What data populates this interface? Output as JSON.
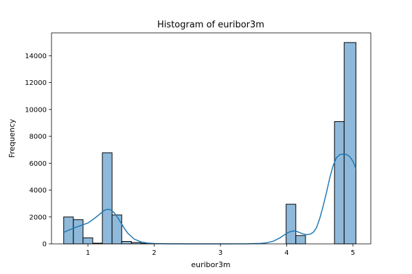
{
  "chart_data": {
    "type": "bar",
    "title": "Histogram of euribor3m",
    "xlabel": "euribor3m",
    "ylabel": "Frequency",
    "xlim": [
      0.45,
      5.27
    ],
    "ylim": [
      0,
      15700
    ],
    "x_ticks": [
      1,
      2,
      3,
      4,
      5
    ],
    "y_ticks": [
      0,
      2000,
      4000,
      6000,
      8000,
      10000,
      12000,
      14000
    ],
    "bin_width": 0.146,
    "bins": [
      {
        "x0": 0.634,
        "x1": 0.78,
        "count": 2000
      },
      {
        "x0": 0.78,
        "x1": 0.926,
        "count": 1800
      },
      {
        "x0": 0.926,
        "x1": 1.072,
        "count": 450
      },
      {
        "x0": 1.072,
        "x1": 1.218,
        "count": 50
      },
      {
        "x0": 1.218,
        "x1": 1.364,
        "count": 6780
      },
      {
        "x0": 1.364,
        "x1": 1.51,
        "count": 2150
      },
      {
        "x0": 1.51,
        "x1": 1.656,
        "count": 180
      },
      {
        "x0": 1.656,
        "x1": 1.802,
        "count": 100
      },
      {
        "x0": 1.802,
        "x1": 1.948,
        "count": 40
      },
      {
        "x0": 1.948,
        "x1": 2.094,
        "count": 10
      },
      {
        "x0": 3.992,
        "x1": 4.138,
        "count": 2950
      },
      {
        "x0": 4.138,
        "x1": 4.284,
        "count": 620
      },
      {
        "x0": 4.722,
        "x1": 4.868,
        "count": 9100
      },
      {
        "x0": 4.868,
        "x1": 5.045,
        "count": 14980
      }
    ],
    "kde": {
      "x": [
        0.634,
        0.7,
        0.8,
        0.9,
        1.0,
        1.1,
        1.2,
        1.25,
        1.3,
        1.35,
        1.4,
        1.45,
        1.5,
        1.55,
        1.6,
        1.7,
        1.8,
        1.9,
        2.0,
        2.2,
        2.5,
        3.0,
        3.4,
        3.6,
        3.7,
        3.8,
        3.9,
        3.95,
        4.0,
        4.05,
        4.1,
        4.15,
        4.2,
        4.25,
        4.3,
        4.35,
        4.4,
        4.45,
        4.5,
        4.55,
        4.6,
        4.65,
        4.7,
        4.75,
        4.8,
        4.85,
        4.9,
        4.95,
        5.0,
        5.045
      ],
      "y": [
        850,
        1000,
        1200,
        1380,
        1550,
        1900,
        2300,
        2500,
        2580,
        2520,
        2300,
        1950,
        1550,
        1150,
        800,
        350,
        150,
        60,
        25,
        5,
        0,
        0,
        5,
        30,
        80,
        200,
        450,
        620,
        780,
        900,
        960,
        930,
        830,
        730,
        690,
        710,
        850,
        1200,
        1900,
        2800,
        3800,
        4900,
        5800,
        6400,
        6640,
        6680,
        6660,
        6500,
        6150,
        5600
      ]
    },
    "series": [
      {
        "values_ref": "bins",
        "color": "#8fb9da",
        "edge_color": "#000000"
      },
      {
        "values_ref": "kde",
        "color": "#1f77b4"
      }
    ],
    "grid": false,
    "legend": "none"
  }
}
